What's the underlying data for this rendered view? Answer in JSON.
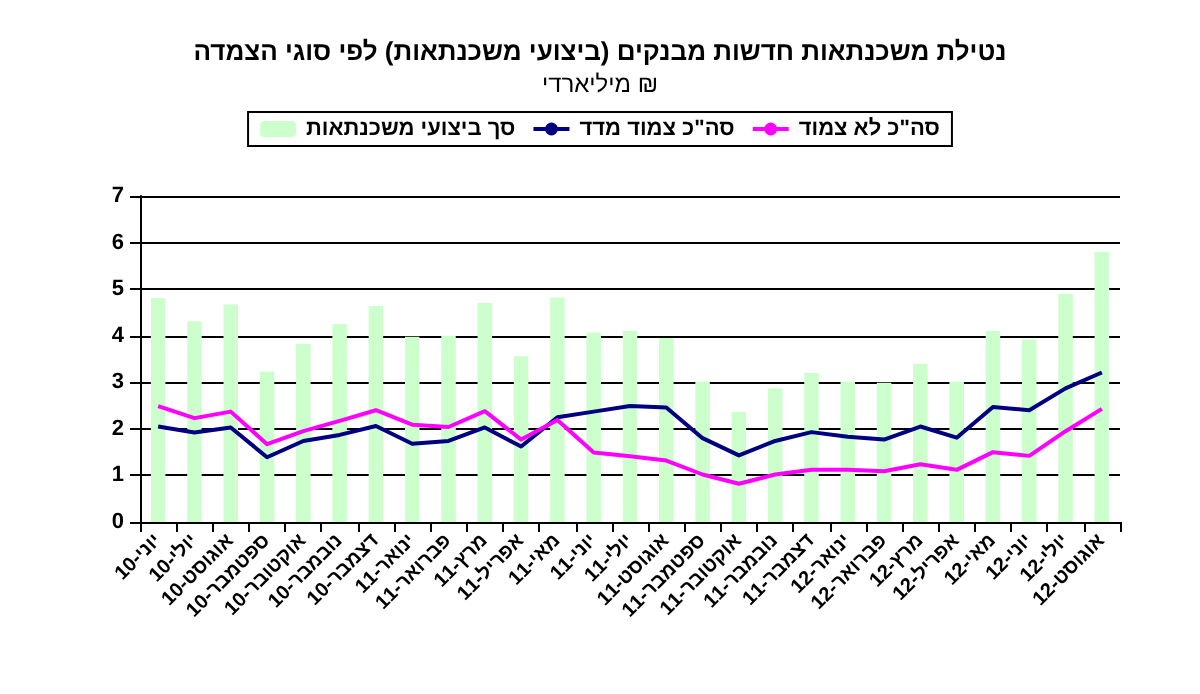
{
  "chart_data": {
    "type": "bar",
    "title": "נטילת משכנתאות חדשות מבנקים (ביצועי משכנתאות) לפי סוגי הצמדה",
    "subtitle": "מיליארדי ₪",
    "categories": [
      "יוני-10",
      "יולי-10",
      "אוגוסט-10",
      "ספטמבר-10",
      "אוקטובר-10",
      "נובמבר-10",
      "דצמבר-10",
      "ינואר-11",
      "פברואר-11",
      "מרץ-11",
      "אפריל-11",
      "מאי-11",
      "יוני-11",
      "יולי-11",
      "אוגוסט-11",
      "ספטמבר-11",
      "אוקטובר-11",
      "נובמבר-11",
      "דצמבר-11",
      "ינואר-12",
      "פברואר-12",
      "מרץ-12",
      "אפריל-12",
      "מאי-12",
      "יוני-12",
      "יולי-12",
      "אוגוסט-12"
    ],
    "series": [
      {
        "name": "סך ביצועי משכנתאות",
        "color": "#ccffcc",
        "values": [
          4.81,
          4.31,
          4.67,
          3.23,
          3.83,
          4.25,
          4.64,
          3.98,
          4.0,
          4.7,
          3.56,
          4.82,
          4.07,
          4.1,
          3.95,
          3.01,
          2.37,
          2.87,
          3.2,
          3.01,
          2.99,
          3.4,
          3.01,
          4.1,
          3.92,
          4.9,
          5.8
        ]
      },
      {
        "name": "סה\"כ צמוד מדד",
        "type": "line",
        "color": "#000080",
        "values": [
          2.05,
          1.92,
          2.03,
          1.39,
          1.74,
          1.87,
          2.06,
          1.68,
          1.74,
          2.03,
          1.62,
          2.25,
          2.37,
          2.49,
          2.46,
          1.8,
          1.43,
          1.74,
          1.93,
          1.83,
          1.77,
          2.05,
          1.81,
          2.47,
          2.4,
          2.87,
          3.21
        ]
      },
      {
        "name": "סה\"כ לא צמוד",
        "type": "line",
        "color": "#ff00ff",
        "values": [
          2.49,
          2.23,
          2.37,
          1.67,
          1.95,
          2.17,
          2.4,
          2.09,
          2.04,
          2.38,
          1.77,
          2.19,
          1.49,
          1.41,
          1.32,
          1.02,
          0.82,
          1.02,
          1.12,
          1.12,
          1.09,
          1.24,
          1.12,
          1.5,
          1.42,
          1.95,
          2.43
        ]
      }
    ],
    "ylim": [
      0,
      7
    ],
    "yticks": [
      0,
      1,
      2,
      3,
      4,
      5,
      6,
      7
    ],
    "grid": "y",
    "legend": "top",
    "marker": "none",
    "line_style": "solid"
  }
}
